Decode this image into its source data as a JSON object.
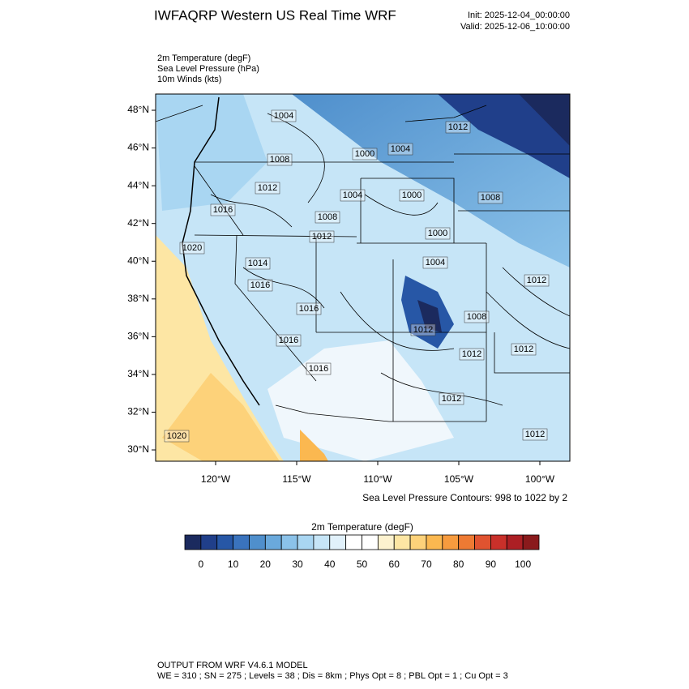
{
  "header": {
    "title": "IWFAQRP Western US Real Time WRF",
    "init": "Init: 2025-12-04_00:00:00",
    "valid": "Valid: 2025-12-06_10:00:00"
  },
  "fields": [
    "2m Temperature   (degF)",
    "Sea Level Pressure   (hPa)",
    "10m Winds   (kts)"
  ],
  "map": {
    "lat_lim": [
      29.4,
      48.86
    ],
    "lon_lim": [
      -123.7,
      -98.15
    ],
    "lat_ticks": [
      {
        "value": 48,
        "label": "48°N"
      },
      {
        "value": 46,
        "label": "46°N"
      },
      {
        "value": 44,
        "label": "44°N"
      },
      {
        "value": 42,
        "label": "42°N"
      },
      {
        "value": 40,
        "label": "40°N"
      },
      {
        "value": 38,
        "label": "38°N"
      },
      {
        "value": 36,
        "label": "36°N"
      },
      {
        "value": 34,
        "label": "34°N"
      },
      {
        "value": 32,
        "label": "32°N"
      },
      {
        "value": 30,
        "label": "30°N"
      }
    ],
    "lon_ticks": [
      {
        "value": -120,
        "label": "120°W"
      },
      {
        "value": -115,
        "label": "115°W"
      },
      {
        "value": -110,
        "label": "110°W"
      },
      {
        "value": -105,
        "label": "105°W"
      },
      {
        "value": -100,
        "label": "100°W"
      }
    ],
    "contour_labels": [
      "1004",
      "1012",
      "1000",
      "1004",
      "1008",
      "1012",
      "1004",
      "1000",
      "1008",
      "1016",
      "1008",
      "1000",
      "1012",
      "1020",
      "1014",
      "1004",
      "1016",
      "1012",
      "1016",
      "1008",
      "1012",
      "1016",
      "1012",
      "1012",
      "1016",
      "1012",
      "1020",
      "1012"
    ],
    "contour_note": "Sea Level Pressure Contours: 998 to 1022 by 2"
  },
  "colorbar": {
    "title": "2m Temperature  (degF)",
    "lim": [
      -5,
      105
    ],
    "colors": [
      "#1b2a5e",
      "#203f8a",
      "#2757a6",
      "#3a73bd",
      "#4f8fcc",
      "#6aa9dc",
      "#8bc2e9",
      "#a9d6f2",
      "#c6e5f7",
      "#e1f1fb",
      "#ffffff",
      "#ffffff",
      "#fdf2cf",
      "#fde6a4",
      "#fdd27a",
      "#fbb850",
      "#f79b3e",
      "#ee7a33",
      "#e05330",
      "#c9302a",
      "#ac1f24",
      "#8a1a1c"
    ],
    "ticks": [
      0,
      10,
      20,
      30,
      40,
      50,
      60,
      70,
      80,
      90,
      100
    ]
  },
  "footer": {
    "line1": "OUTPUT FROM WRF V4.6.1 MODEL",
    "line2": "WE = 310 ; SN = 275 ; Levels = 38 ; Dis = 8km ; Phys Opt = 8 ; PBL Opt = 1 ; Cu Opt = 3"
  }
}
